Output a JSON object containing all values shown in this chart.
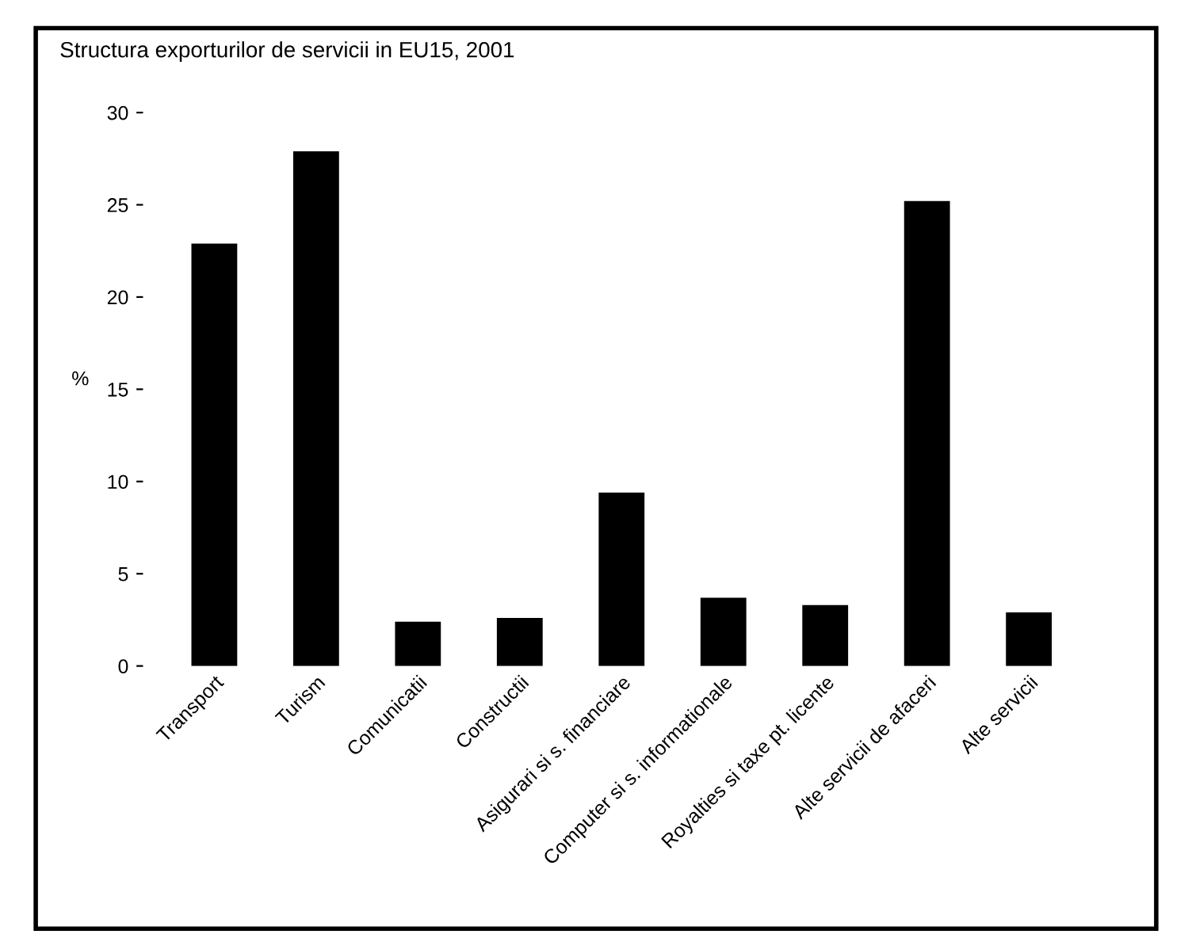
{
  "chart_data": {
    "type": "bar",
    "title": "Structura exporturilor de servicii in EU15, 2001",
    "ylabel": "%",
    "categories": [
      "Transport",
      "Turism",
      "Comunicatii",
      "Constructii",
      "Asigurari si s. financiare",
      "Computer si s. informationale",
      "Royalties si taxe pt. licente",
      "Alte servicii de afaceri",
      "Alte servicii"
    ],
    "values": [
      22.9,
      27.9,
      2.4,
      2.6,
      9.4,
      3.7,
      3.3,
      25.2,
      2.9
    ],
    "color": "#000000",
    "ylim": [
      0,
      30
    ],
    "yticks": [
      0,
      5,
      10,
      15,
      20,
      25,
      30
    ],
    "grid": false,
    "legend": false
  }
}
